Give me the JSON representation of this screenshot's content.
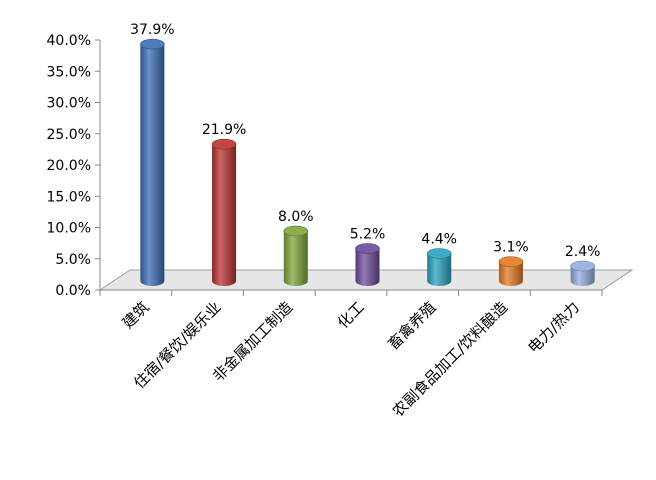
{
  "chart_data": {
    "type": "bar",
    "title": "",
    "xlabel": "",
    "ylabel": "",
    "categories": [
      "建筑",
      "住宿/餐饮/娱乐业",
      "非金属加工制造",
      "化工",
      "畜禽养殖",
      "农副食品加工/饮料酿造",
      "电力/热力"
    ],
    "values": [
      37.9,
      21.9,
      8.0,
      5.2,
      4.4,
      3.1,
      2.4
    ],
    "value_labels": [
      "37.9%",
      "21.9%",
      "8.0%",
      "5.2%",
      "4.4%",
      "3.1%",
      "2.4%"
    ],
    "ylim": [
      0,
      40
    ],
    "yticks": [
      {
        "value": 0,
        "label": "0.0%"
      },
      {
        "value": 5,
        "label": "5.0%"
      },
      {
        "value": 10,
        "label": "10.0%"
      },
      {
        "value": 15,
        "label": "15.0%"
      },
      {
        "value": 20,
        "label": "20.0%"
      },
      {
        "value": 25,
        "label": "25.0%"
      },
      {
        "value": 30,
        "label": "30.0%"
      },
      {
        "value": 35,
        "label": "35.0%"
      },
      {
        "value": 40,
        "label": "40.0%"
      }
    ],
    "colors": [
      "#3a6db5",
      "#b8322f",
      "#7ea43a",
      "#6b4c9a",
      "#2aa1bd",
      "#e47a20",
      "#93aede"
    ],
    "grid": false,
    "legend": "none",
    "style": "3d-cylinder"
  }
}
